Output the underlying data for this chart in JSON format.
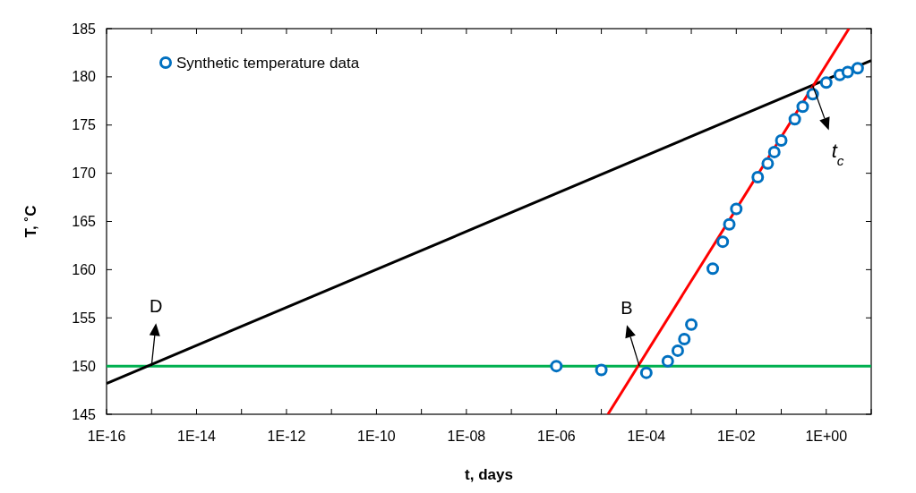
{
  "chart_data": {
    "type": "scatter",
    "xlabel": "t, days",
    "ylabel": "T, ˚C",
    "log": "x",
    "xlim": [
      1e-16,
      10
    ],
    "ylim": [
      145,
      185
    ],
    "xticks": [
      {
        "value": 1e-16,
        "label": "1E-16"
      },
      {
        "value": 1e-15,
        "label": null
      },
      {
        "value": 1e-14,
        "label": "1E-14"
      },
      {
        "value": 1e-13,
        "label": null
      },
      {
        "value": 1e-12,
        "label": "1E-12"
      },
      {
        "value": 1e-11,
        "label": null
      },
      {
        "value": 1e-10,
        "label": "1E-10"
      },
      {
        "value": 1e-09,
        "label": null
      },
      {
        "value": 1e-08,
        "label": "1E-08"
      },
      {
        "value": 1e-07,
        "label": null
      },
      {
        "value": 1e-06,
        "label": "1E-06"
      },
      {
        "value": 1e-05,
        "label": null
      },
      {
        "value": 0.0001,
        "label": "1E-04"
      },
      {
        "value": 0.001,
        "label": null
      },
      {
        "value": 0.01,
        "label": "1E-02"
      },
      {
        "value": 0.1,
        "label": null
      },
      {
        "value": 1,
        "label": "1E+00"
      },
      {
        "value": 10,
        "label": null
      }
    ],
    "yticks": [
      145,
      150,
      155,
      160,
      165,
      170,
      175,
      180,
      185
    ],
    "grid": false,
    "legend": "top left",
    "line_style": "solid",
    "series": [
      {
        "name": "Synthetic temperature data",
        "marker": "circle",
        "color": "#0070c0",
        "x": [
          1e-06,
          1e-05,
          0.0001,
          0.0003,
          0.0005,
          0.0007,
          0.001,
          0.003,
          0.005,
          0.007,
          0.01,
          0.03,
          0.05,
          0.07,
          0.1,
          0.2,
          0.3,
          0.5,
          1,
          2,
          3,
          5
        ],
        "values": [
          150.0,
          149.6,
          149.3,
          150.5,
          151.6,
          152.8,
          154.3,
          160.1,
          162.9,
          164.7,
          166.3,
          169.6,
          171.0,
          172.2,
          173.4,
          175.6,
          176.9,
          178.2,
          179.4,
          180.2,
          180.5,
          180.9
        ]
      },
      {
        "type": "line",
        "marker": "none",
        "color": "#000000",
        "x": [
          1e-16,
          10
        ],
        "values": [
          148.2,
          181.7
        ]
      },
      {
        "type": "line",
        "marker": "none",
        "color": "#ff0000",
        "x": [
          1.4e-05,
          3.2
        ],
        "values": [
          145,
          185
        ]
      }
    ],
    "ref_lines": [
      {
        "axis": "y",
        "value": 150,
        "color": "#00b050"
      }
    ],
    "annotations": [
      {
        "text": "D",
        "x": 1e-15,
        "y": 150
      },
      {
        "text": "B",
        "x": 7e-05,
        "y": 150
      },
      {
        "text": "t$_{c}$",
        "x": 0.5,
        "y": 179.1
      }
    ]
  }
}
